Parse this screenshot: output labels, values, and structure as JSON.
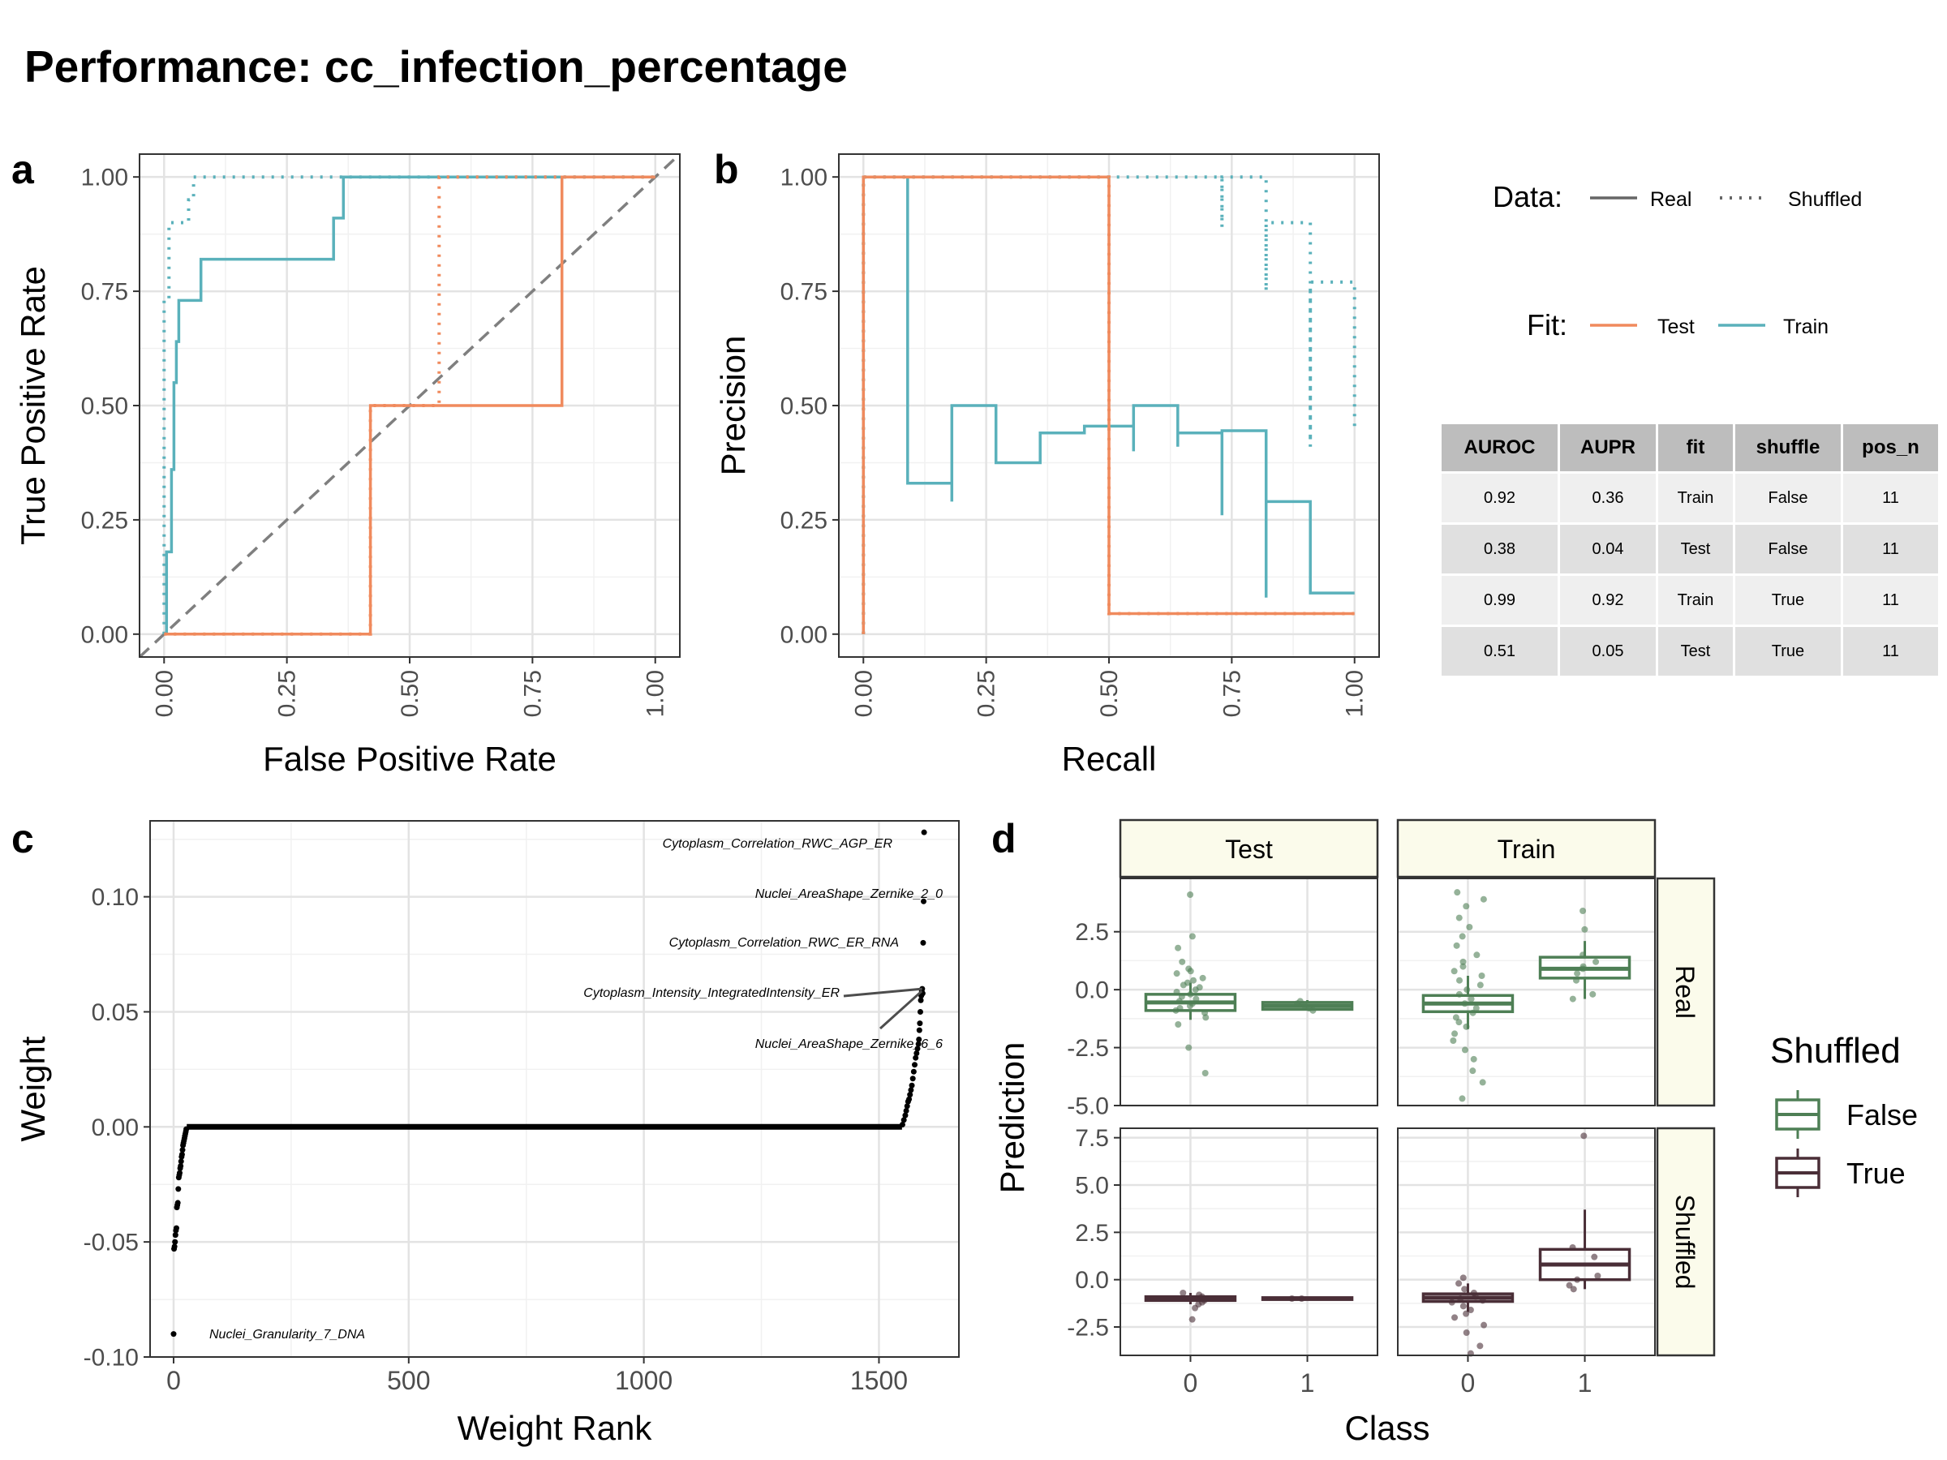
{
  "title": "Performance: cc_infection_percentage",
  "panel_labels": [
    "a",
    "b",
    "c",
    "d"
  ],
  "colors": {
    "test": "#F08A5D",
    "train": "#5AB1BB",
    "false": "#4E7F55",
    "true": "#4A2E37",
    "diag": "#7f7f7f"
  },
  "legend": {
    "data_title": "Data:",
    "real": "Real",
    "shuffled": "Shuffled",
    "fit_title": "Fit:",
    "test": "Test",
    "train": "Train",
    "shuffled_title": "Shuffled",
    "false": "False",
    "true": "True"
  },
  "table": {
    "columns": [
      "AUROC",
      "AUPR",
      "fit",
      "shuffle",
      "pos_n"
    ],
    "rows": [
      [
        "0.92",
        "0.36",
        "Train",
        "False",
        "11"
      ],
      [
        "0.38",
        "0.04",
        "Test",
        "False",
        "11"
      ],
      [
        "0.99",
        "0.92",
        "Train",
        "True",
        "11"
      ],
      [
        "0.51",
        "0.05",
        "Test",
        "True",
        "11"
      ]
    ]
  },
  "chart_data": [
    {
      "panel": "a",
      "type": "line",
      "xlabel": "False Positive Rate",
      "ylabel": "True Positive Rate",
      "xlim": [
        0,
        1
      ],
      "ylim": [
        0,
        1
      ],
      "grid": true,
      "xticks": [
        "0.00",
        "0.25",
        "0.50",
        "0.75",
        "1.00"
      ],
      "yticks": [
        "0.00",
        "0.25",
        "0.50",
        "0.75",
        "1.00"
      ],
      "series": [
        {
          "name": "Train",
          "data": "Real",
          "x": [
            0,
            0.005,
            0.005,
            0.015,
            0.015,
            0.02,
            0.02,
            0.025,
            0.025,
            0.03,
            0.03,
            0.035,
            0.035,
            0.075,
            0.075,
            0.345,
            0.345,
            0.365,
            0.365,
            1
          ],
          "y": [
            0,
            0,
            0.18,
            0.18,
            0.36,
            0.36,
            0.55,
            0.55,
            0.64,
            0.64,
            0.73,
            0.73,
            0.73,
            0.73,
            0.82,
            0.82,
            0.91,
            0.91,
            1,
            1
          ]
        },
        {
          "name": "Test",
          "data": "Real",
          "x": [
            0,
            0.42,
            0.42,
            0.81,
            0.81,
            1
          ],
          "y": [
            0,
            0,
            0.5,
            0.5,
            1,
            1
          ]
        },
        {
          "name": "Train",
          "data": "Shuffled",
          "x": [
            0,
            0,
            0.01,
            0.01,
            0.05,
            0.05,
            0.06,
            0.06,
            1
          ],
          "y": [
            0,
            0.73,
            0.73,
            0.9,
            0.9,
            0.95,
            0.95,
            1,
            1
          ]
        },
        {
          "name": "Test",
          "data": "Shuffled",
          "x": [
            0,
            0.42,
            0.42,
            0.56,
            0.56,
            1
          ],
          "y": [
            0,
            0,
            0.5,
            0.5,
            1,
            1
          ]
        }
      ]
    },
    {
      "panel": "b",
      "type": "line",
      "xlabel": "Recall",
      "ylabel": "Precision",
      "xlim": [
        0,
        1
      ],
      "ylim": [
        0,
        1
      ],
      "grid": true,
      "xticks": [
        "0.00",
        "0.25",
        "0.50",
        "0.75",
        "1.00"
      ],
      "yticks": [
        "0.00",
        "0.25",
        "0.50",
        "0.75",
        "1.00"
      ],
      "series": [
        {
          "name": "Train",
          "data": "Real",
          "x": [
            0,
            0,
            0.09,
            0.09,
            0.18,
            0.18,
            0.18,
            0.18,
            0.27,
            0.27,
            0.36,
            0.36,
            0.45,
            0.45,
            0.55,
            0.55,
            0.55,
            0.55,
            0.64,
            0.64,
            0.64,
            0.64,
            0.73,
            0.73,
            0.73,
            0.73,
            0.82,
            0.82,
            0.82,
            0.82,
            0.91,
            0.91,
            1
          ],
          "y": [
            0,
            1,
            1,
            0.33,
            0.33,
            0.29,
            0.29,
            0.5,
            0.5,
            0.375,
            0.375,
            0.44,
            0.44,
            0.455,
            0.455,
            0.4,
            0.4,
            0.5,
            0.5,
            0.41,
            0.41,
            0.44,
            0.44,
            0.26,
            0.26,
            0.445,
            0.445,
            0.08,
            0.08,
            0.29,
            0.29,
            0.09,
            0.09
          ]
        },
        {
          "name": "Test",
          "data": "Real",
          "x": [
            0,
            0,
            0.5,
            0.5,
            1
          ],
          "y": [
            0,
            1,
            1,
            0.045,
            0.045
          ]
        },
        {
          "name": "Train",
          "data": "Shuffled",
          "x": [
            0,
            0,
            0.73,
            0.73,
            0.73,
            0.73,
            0.82,
            0.82,
            0.82,
            0.82,
            0.91,
            0.91,
            0.91,
            0.91,
            1,
            1
          ],
          "y": [
            0,
            1,
            1,
            0.89,
            0.89,
            1,
            1,
            0.75,
            0.75,
            0.9,
            0.9,
            0.41,
            0.41,
            0.77,
            0.77,
            0.44
          ]
        },
        {
          "name": "Test",
          "data": "Shuffled",
          "x": [
            0,
            0,
            0.5,
            0.5,
            1
          ],
          "y": [
            0,
            1,
            1,
            0.045,
            0.045
          ]
        }
      ]
    },
    {
      "panel": "c",
      "type": "scatter",
      "xlabel": "Weight Rank",
      "ylabel": "Weight",
      "xlim": [
        -50,
        1670
      ],
      "ylim": [
        -0.1,
        0.133
      ],
      "grid": true,
      "xticks": [
        "0",
        "500",
        "1000",
        "1500"
      ],
      "yticks": [
        "-0.10",
        "-0.05",
        "0.00",
        "0.05",
        "0.10"
      ],
      "annotations": [
        {
          "label": "Cytoplasm_Correlation_RWC_AGP_ER",
          "rank": 1596,
          "weight": 0.128
        },
        {
          "label": "Nuclei_AreaShape_Zernike_2_0",
          "rank": 1595,
          "weight": 0.098
        },
        {
          "label": "Cytoplasm_Correlation_RWC_ER_RNA",
          "rank": 1594,
          "weight": 0.08
        },
        {
          "label": "Cytoplasm_Intensity_IntegratedIntensity_ER",
          "rank": 1592,
          "weight": 0.06
        },
        {
          "label": "Nuclei_AreaShape_Zernike_6_6",
          "rank": 1591,
          "weight": 0.059
        },
        {
          "label": "Nuclei_Granularity_7_DNA",
          "rank": 0,
          "weight": -0.09
        }
      ],
      "points": [
        [
          0,
          -0.09
        ],
        [
          1,
          -0.053
        ],
        [
          2,
          -0.052
        ],
        [
          3,
          -0.05
        ],
        [
          4,
          -0.047
        ],
        [
          5,
          -0.045
        ],
        [
          6,
          -0.044
        ],
        [
          7,
          -0.035
        ],
        [
          8,
          -0.034
        ],
        [
          9,
          -0.033
        ],
        [
          10,
          -0.027
        ],
        [
          11,
          -0.022
        ],
        [
          12,
          -0.021
        ],
        [
          13,
          -0.02
        ],
        [
          14,
          -0.018
        ],
        [
          15,
          -0.017
        ],
        [
          16,
          -0.015
        ],
        [
          17,
          -0.013
        ],
        [
          18,
          -0.012
        ],
        [
          19,
          -0.01
        ],
        [
          20,
          -0.008
        ],
        [
          21,
          -0.007
        ],
        [
          22,
          -0.006
        ],
        [
          23,
          -0.005
        ],
        [
          24,
          -0.004
        ],
        [
          25,
          -0.003
        ],
        [
          26,
          -0.002
        ],
        [
          27,
          -0.001
        ],
        [
          1550,
          0.001
        ],
        [
          1553,
          0.003
        ],
        [
          1556,
          0.005
        ],
        [
          1558,
          0.007
        ],
        [
          1560,
          0.009
        ],
        [
          1562,
          0.011
        ],
        [
          1564,
          0.012
        ],
        [
          1566,
          0.014
        ],
        [
          1568,
          0.016
        ],
        [
          1570,
          0.018
        ],
        [
          1572,
          0.021
        ],
        [
          1574,
          0.024
        ],
        [
          1576,
          0.027
        ],
        [
          1578,
          0.03
        ],
        [
          1580,
          0.032
        ],
        [
          1582,
          0.034
        ],
        [
          1584,
          0.036
        ],
        [
          1585,
          0.038
        ],
        [
          1586,
          0.042
        ],
        [
          1587,
          0.045
        ],
        [
          1588,
          0.05
        ],
        [
          1589,
          0.055
        ],
        [
          1590,
          0.057
        ],
        [
          1591,
          0.059
        ],
        [
          1592,
          0.06
        ],
        [
          1593,
          0.058
        ],
        [
          1594,
          0.08
        ],
        [
          1595,
          0.098
        ],
        [
          1596,
          0.128
        ]
      ],
      "zero_segment": [
        28,
        1549
      ]
    },
    {
      "panel": "d",
      "type": "box",
      "xlabel": "Class",
      "ylabel": "Prediction",
      "facet_cols": [
        "Test",
        "Train"
      ],
      "facet_rows": [
        "Real",
        "Shuffled"
      ],
      "xticks": [
        "0",
        "1"
      ],
      "rows": [
        {
          "name": "Real",
          "ylim": [
            -5.0,
            4.8
          ],
          "yticks": [
            "2.5",
            "0.0",
            "-2.5",
            "-5.0"
          ],
          "ytick_values": [
            2.5,
            0,
            -2.5,
            -5
          ],
          "panels": {
            "Test": {
              "boxes": [
                {
                  "class": 0,
                  "q1": -0.9,
                  "median": -0.55,
                  "q3": -0.2,
                  "lo": -1.3,
                  "hi": 0.3
                },
                {
                  "class": 1,
                  "q1": -0.85,
                  "median": -0.7,
                  "q3": -0.55,
                  "lo": -0.9,
                  "hi": -0.45
                }
              ],
              "points0": [
                4.1,
                2.3,
                1.8,
                1.2,
                0.9,
                0.8,
                0.7,
                0.5,
                0.4,
                0.3,
                0.2,
                0.1,
                0.0,
                -0.1,
                -0.2,
                -0.3,
                -0.4,
                -0.5,
                -0.6,
                -0.7,
                -0.8,
                -0.9,
                -1.0,
                -1.2,
                -1.5,
                -2.5,
                -3.6
              ],
              "points1": [
                -0.6,
                -0.7,
                -0.8,
                -0.9,
                -0.5
              ]
            },
            "Train": {
              "boxes": [
                {
                  "class": 0,
                  "q1": -0.95,
                  "median": -0.6,
                  "q3": -0.25,
                  "lo": -1.7,
                  "hi": 0.6
                },
                {
                  "class": 1,
                  "q1": 0.5,
                  "median": 0.9,
                  "q3": 1.4,
                  "lo": -0.4,
                  "hi": 2.1
                }
              ],
              "points0": [
                4.2,
                3.9,
                3.6,
                3.1,
                2.7,
                2.3,
                1.9,
                1.5,
                1.2,
                1.0,
                0.8,
                0.6,
                0.4,
                0.2,
                0.0,
                -0.2,
                -0.4,
                -0.6,
                -0.8,
                -1.0,
                -1.2,
                -1.4,
                -1.6,
                -1.9,
                -2.2,
                -2.6,
                -3.0,
                -3.5,
                -4.0,
                -4.7
              ],
              "points1": [
                3.4,
                2.6,
                1.5,
                1.2,
                1.0,
                0.9,
                0.7,
                0.4,
                -0.2,
                -0.4
              ]
            }
          }
        },
        {
          "name": "Shuffled",
          "ylim": [
            -4.0,
            8.0
          ],
          "yticks": [
            "7.5",
            "5.0",
            "2.5",
            "0.0",
            "-2.5"
          ],
          "ytick_values": [
            7.5,
            5,
            2.5,
            0,
            -2.5
          ],
          "panels": {
            "Test": {
              "boxes": [
                {
                  "class": 0,
                  "q1": -1.1,
                  "median": -1.0,
                  "q3": -0.9,
                  "lo": -1.3,
                  "hi": -0.7
                },
                {
                  "class": 1,
                  "q1": -1.05,
                  "median": -1.0,
                  "q3": -0.95,
                  "lo": -1.05,
                  "hi": -0.95
                }
              ],
              "points0": [
                -0.7,
                -0.8,
                -0.9,
                -1.0,
                -1.1,
                -1.2,
                -1.3,
                -1.5,
                -2.1
              ],
              "points1": [
                -1.0,
                -1.0
              ]
            },
            "Train": {
              "boxes": [
                {
                  "class": 0,
                  "q1": -1.15,
                  "median": -0.95,
                  "q3": -0.75,
                  "lo": -1.7,
                  "hi": -0.2
                },
                {
                  "class": 1,
                  "q1": 0.0,
                  "median": 0.8,
                  "q3": 1.6,
                  "lo": -0.5,
                  "hi": 3.7
                }
              ],
              "points0": [
                0.1,
                -0.2,
                -0.5,
                -0.7,
                -0.9,
                -1.0,
                -1.1,
                -1.2,
                -1.4,
                -1.6,
                -1.8,
                -2.0,
                -2.4,
                -2.8,
                -3.5,
                -3.9
              ],
              "points1": [
                7.6,
                1.7,
                1.2,
                0.2,
                0.0,
                -0.3,
                -0.5
              ]
            }
          }
        }
      ]
    }
  ]
}
